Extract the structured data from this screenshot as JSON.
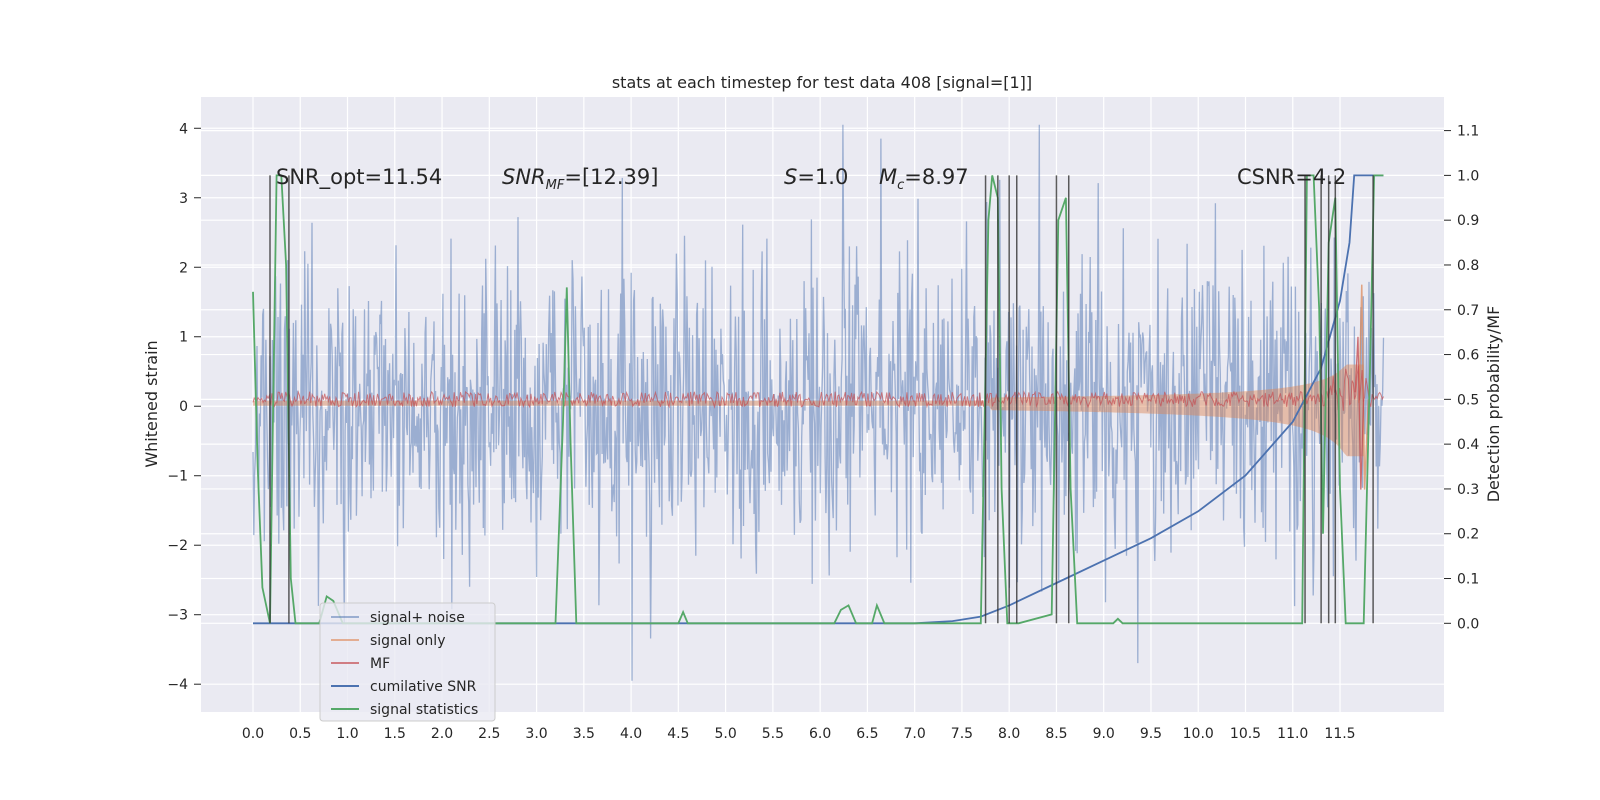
{
  "chart_data": {
    "type": "line",
    "title": "stats at each timestep for test data 408 [signal=[1]]",
    "xlabel": "",
    "ylabel": "Whitened strain",
    "y2label": "Detection probability/MF",
    "xlim": [
      -0.55,
      12.6
    ],
    "ylim": [
      -4.4,
      4.45
    ],
    "y2lim": [
      -0.198,
      1.175
    ],
    "xticks": [
      "0.0",
      "0.5",
      "1.0",
      "1.5",
      "2.0",
      "2.5",
      "3.0",
      "3.5",
      "4.0",
      "4.5",
      "5.0",
      "5.5",
      "6.0",
      "6.5",
      "7.0",
      "7.5",
      "8.0",
      "8.5",
      "9.0",
      "9.5",
      "10.0",
      "10.5",
      "11.0",
      "11.5"
    ],
    "yticks": [
      -4,
      -3,
      -2,
      -1,
      0,
      1,
      2,
      3,
      4
    ],
    "y2ticks": [
      "0.0",
      "0.1",
      "0.2",
      "0.3",
      "0.4",
      "0.5",
      "0.6",
      "0.7",
      "0.8",
      "0.9",
      "1.0",
      "1.1"
    ],
    "grid": true,
    "legend_position": "lower-left",
    "annotations": [
      {
        "key": "snr_opt",
        "text": "SNR_opt=11.54"
      },
      {
        "key": "snr_mf",
        "text": "SNR_MF=[12.39]"
      },
      {
        "key": "s",
        "text": "S=1.0"
      },
      {
        "key": "mc",
        "text": "Mc=8.97"
      },
      {
        "key": "csnr",
        "text": "CSNR=4.2"
      }
    ],
    "series": [
      {
        "name": "signal+ noise",
        "color": "#4c72b0",
        "description": "whitened strain, approx. between -3 and 3"
      },
      {
        "name": "signal only",
        "color": "#dd8452",
        "description": "signal envelope growing toward merger near 11.7"
      },
      {
        "name": "MF",
        "color": "#c44e52",
        "description": "matched filter trace near 0.1"
      },
      {
        "name": "cumilative SNR",
        "color": "#4c72b0",
        "points": [
          [
            0,
            0
          ],
          [
            7.0,
            0
          ],
          [
            7.4,
            0.005
          ],
          [
            7.7,
            0.015
          ],
          [
            8.0,
            0.04
          ],
          [
            8.5,
            0.09
          ],
          [
            9.0,
            0.14
          ],
          [
            9.5,
            0.19
          ],
          [
            10.0,
            0.25
          ],
          [
            10.5,
            0.33
          ],
          [
            11.0,
            0.45
          ],
          [
            11.3,
            0.57
          ],
          [
            11.5,
            0.72
          ],
          [
            11.6,
            0.85
          ],
          [
            11.65,
            1.0
          ],
          [
            11.96,
            1.0
          ]
        ]
      },
      {
        "name": "signal statistics",
        "color": "#55a868",
        "points": [
          [
            0,
            0.74
          ],
          [
            0.05,
            0.35
          ],
          [
            0.1,
            0.08
          ],
          [
            0.18,
            0.0
          ],
          [
            0.2,
            0.3
          ],
          [
            0.25,
            1.0
          ],
          [
            0.3,
            1.0
          ],
          [
            0.35,
            0.8
          ],
          [
            0.4,
            0.1
          ],
          [
            0.45,
            0.0
          ],
          [
            0.7,
            0.0
          ],
          [
            0.78,
            0.06
          ],
          [
            0.85,
            0.05
          ],
          [
            0.95,
            0.0
          ],
          [
            3.2,
            0.0
          ],
          [
            3.28,
            0.45
          ],
          [
            3.32,
            0.75
          ],
          [
            3.36,
            0.4
          ],
          [
            3.42,
            0.0
          ],
          [
            4.5,
            0.0
          ],
          [
            4.55,
            0.025
          ],
          [
            4.6,
            0.0
          ],
          [
            6.15,
            0.0
          ],
          [
            6.22,
            0.03
          ],
          [
            6.3,
            0.04
          ],
          [
            6.38,
            0.0
          ],
          [
            6.55,
            0.0
          ],
          [
            6.6,
            0.04
          ],
          [
            6.68,
            0.0
          ],
          [
            7.7,
            0.0
          ],
          [
            7.78,
            0.9
          ],
          [
            7.82,
            1.0
          ],
          [
            7.88,
            0.95
          ],
          [
            7.92,
            0.3
          ],
          [
            7.98,
            0.0
          ],
          [
            8.1,
            0.0
          ],
          [
            8.45,
            0.02
          ],
          [
            8.52,
            0.9
          ],
          [
            8.6,
            0.95
          ],
          [
            8.65,
            0.3
          ],
          [
            8.72,
            0.0
          ],
          [
            9.1,
            0.0
          ],
          [
            9.15,
            0.01
          ],
          [
            9.2,
            0.0
          ],
          [
            11.1,
            0.0
          ],
          [
            11.15,
            1.0
          ],
          [
            11.22,
            1.0
          ],
          [
            11.28,
            0.7
          ],
          [
            11.32,
            0.2
          ],
          [
            11.38,
            0.85
          ],
          [
            11.45,
            0.95
          ],
          [
            11.5,
            0.3
          ],
          [
            11.56,
            0.0
          ],
          [
            11.75,
            0.0
          ],
          [
            11.82,
            0.6
          ],
          [
            11.86,
            1.0
          ],
          [
            11.96,
            1.0
          ]
        ]
      }
    ],
    "vlines": [
      0.18,
      0.38,
      7.75,
      7.88,
      8.0,
      8.08,
      8.5,
      8.63,
      11.13,
      11.3,
      11.38,
      11.45,
      11.85
    ]
  },
  "colors": {
    "background": "#eaeaf2",
    "grid": "#ffffff",
    "strain": "#4c72b0",
    "signal_only": "#dd8452",
    "mf": "#c44e52",
    "cumulative": "#4c72b0",
    "signal_stats": "#55a868",
    "vline": "#333333"
  }
}
